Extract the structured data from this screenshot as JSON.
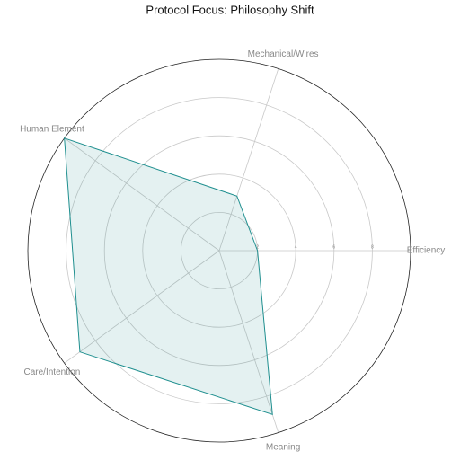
{
  "chart_data": {
    "type": "radar",
    "title": "Protocol Focus: Philosophy Shift",
    "categories": [
      "Efficiency",
      "Mechanical/Wires",
      "Human Element",
      "Care/Intention",
      "Meaning"
    ],
    "values": [
      2,
      3,
      10,
      9,
      9
    ],
    "color": "#1f8f8f",
    "ylim": [
      0,
      10
    ],
    "yticks": [
      2,
      4,
      6,
      8
    ],
    "grid": true
  }
}
